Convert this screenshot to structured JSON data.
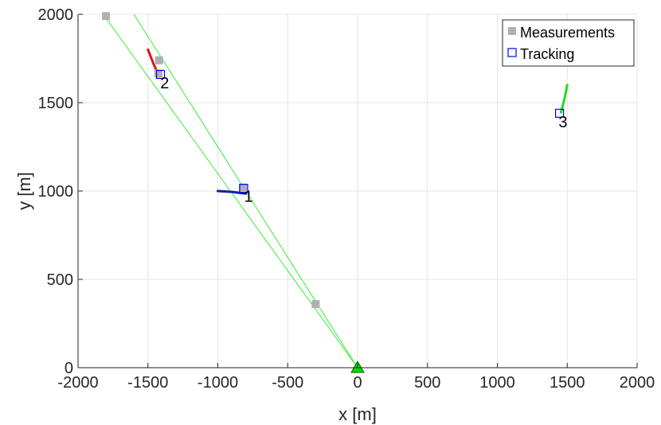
{
  "chart_data": {
    "type": "scatter",
    "xlabel": "x [m]",
    "ylabel": "y [m]",
    "xlim": [
      -2000,
      2000
    ],
    "ylim": [
      0,
      2000
    ],
    "xticks": [
      -2000,
      -1500,
      -1000,
      -500,
      0,
      500,
      1000,
      1500,
      2000
    ],
    "yticks": [
      0,
      500,
      1000,
      1500,
      2000
    ],
    "xtick_labels": [
      "-2000",
      "-1500",
      "-1000",
      "-500",
      "0",
      "500",
      "1000",
      "1500",
      "2000"
    ],
    "ytick_labels": [
      "0",
      "500",
      "1000",
      "1500",
      "2000"
    ],
    "grid": true,
    "legend_position": "top-right",
    "legend": [
      {
        "label": "Measurements",
        "marker": "filled-square",
        "color": "#b0b0b0"
      },
      {
        "label": "Tracking",
        "marker": "open-square",
        "color": "#0000ff"
      }
    ],
    "sensor": {
      "x": 0,
      "y": 0,
      "marker": "triangle",
      "color": "#00dd00"
    },
    "bearing_lines": [
      {
        "to": [
          -1820,
          2000
        ],
        "color": "#33ee33"
      },
      {
        "to": [
          -1600,
          2000
        ],
        "color": "#33ee33"
      }
    ],
    "measurements": [
      {
        "x": -1800,
        "y": 1990
      },
      {
        "x": -1420,
        "y": 1740
      },
      {
        "x": -1425,
        "y": 1665
      },
      {
        "x": -820,
        "y": 1020
      },
      {
        "x": -300,
        "y": 360
      }
    ],
    "tracks": [
      {
        "label": "1",
        "color": "#0b1fa8",
        "path": [
          [
            -1000,
            1000
          ],
          [
            -900,
            995
          ],
          [
            -800,
            985
          ]
        ],
        "estimate": {
          "x": -815,
          "y": 1015
        },
        "label_pos": {
          "x": -780,
          "y": 940
        }
      },
      {
        "label": "2",
        "color": "#e8111c",
        "path": [
          [
            -1500,
            1800
          ],
          [
            -1460,
            1720
          ],
          [
            -1430,
            1665
          ]
        ],
        "estimate": {
          "x": -1410,
          "y": 1660
        },
        "label_pos": {
          "x": -1380,
          "y": 1580
        }
      },
      {
        "label": "3",
        "color": "#22dd22",
        "path": [
          [
            1500,
            1600
          ],
          [
            1480,
            1520
          ],
          [
            1455,
            1445
          ]
        ],
        "estimate": {
          "x": 1445,
          "y": 1440
        },
        "label_pos": {
          "x": 1470,
          "y": 1360
        }
      }
    ]
  }
}
